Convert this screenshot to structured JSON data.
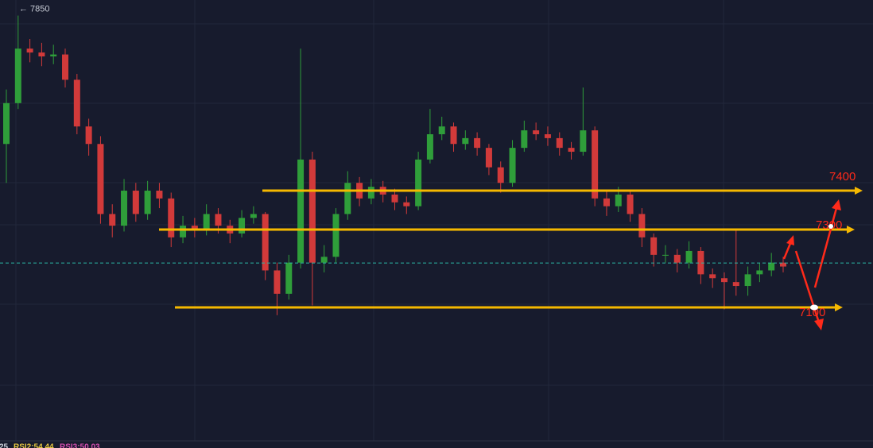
{
  "chart_data": {
    "type": "candlestick",
    "ylim": [
      6757,
      7890
    ],
    "up_color": "#2f9e3a",
    "down_color": "#d23a3a",
    "open": [
      7520,
      7625,
      7765,
      7755,
      7745,
      7750,
      7685,
      7565,
      7520,
      7340,
      7310,
      7400,
      7340,
      7400,
      7380,
      7280,
      7310,
      7300,
      7340,
      7310,
      7290,
      7330,
      7340,
      7195,
      7135,
      7215,
      7480,
      7215,
      7230,
      7340,
      7420,
      7380,
      7410,
      7390,
      7370,
      7360,
      7480,
      7545,
      7565,
      7520,
      7535,
      7510,
      7460,
      7420,
      7510,
      7555,
      7545,
      7535,
      7510,
      7500,
      7555,
      7380,
      7360,
      7390,
      7340,
      7280,
      7235,
      7235,
      7215,
      7245,
      7185,
      7175,
      7165,
      7155,
      7185,
      7195,
      7215
    ],
    "high": [
      7660,
      7850,
      7790,
      7780,
      7775,
      7765,
      7700,
      7585,
      7540,
      7365,
      7430,
      7420,
      7425,
      7420,
      7395,
      7335,
      7330,
      7365,
      7355,
      7325,
      7350,
      7360,
      7345,
      7215,
      7235,
      7765,
      7500,
      7260,
      7355,
      7450,
      7435,
      7430,
      7425,
      7405,
      7385,
      7500,
      7610,
      7590,
      7575,
      7555,
      7550,
      7520,
      7475,
      7530,
      7580,
      7575,
      7565,
      7550,
      7525,
      7665,
      7565,
      7400,
      7410,
      7400,
      7355,
      7290,
      7260,
      7250,
      7270,
      7255,
      7200,
      7190,
      7300,
      7205,
      7215,
      7240,
      7230
    ],
    "low": [
      7420,
      7610,
      7730,
      7720,
      7725,
      7665,
      7545,
      7490,
      7315,
      7280,
      7295,
      7320,
      7325,
      7355,
      7255,
      7265,
      7280,
      7285,
      7290,
      7265,
      7280,
      7315,
      7170,
      7080,
      7120,
      7200,
      7105,
      7190,
      7215,
      7325,
      7360,
      7365,
      7370,
      7350,
      7340,
      7350,
      7470,
      7530,
      7500,
      7505,
      7490,
      7440,
      7395,
      7410,
      7500,
      7530,
      7515,
      7490,
      7480,
      7490,
      7360,
      7335,
      7345,
      7320,
      7255,
      7205,
      7215,
      7190,
      7200,
      7160,
      7150,
      7095,
      7130,
      7130,
      7165,
      7180,
      7190
    ],
    "close": [
      7625,
      7765,
      7755,
      7745,
      7750,
      7685,
      7565,
      7520,
      7340,
      7310,
      7400,
      7340,
      7400,
      7380,
      7280,
      7310,
      7300,
      7340,
      7310,
      7290,
      7330,
      7340,
      7195,
      7135,
      7215,
      7480,
      7215,
      7230,
      7340,
      7420,
      7380,
      7410,
      7390,
      7370,
      7360,
      7480,
      7545,
      7565,
      7520,
      7535,
      7510,
      7460,
      7420,
      7510,
      7555,
      7545,
      7535,
      7510,
      7500,
      7555,
      7380,
      7360,
      7390,
      7340,
      7280,
      7235,
      7235,
      7215,
      7245,
      7185,
      7175,
      7165,
      7155,
      7185,
      7195,
      7215,
      7205
    ],
    "high_marker": {
      "value": 7850,
      "label": "← 7850"
    },
    "current_price": 7214,
    "current_color": "#2bb3a3",
    "levels": [
      7400,
      7300,
      7100
    ],
    "level_color": "#f5b800",
    "level_label_color": "#ff2a1a",
    "indicators": [
      "25",
      "RSI2:54.44",
      "RSI3:50.03"
    ],
    "indicator_colors": [
      "#cfd3dc",
      "#e8c840",
      "#d64fb0"
    ]
  }
}
